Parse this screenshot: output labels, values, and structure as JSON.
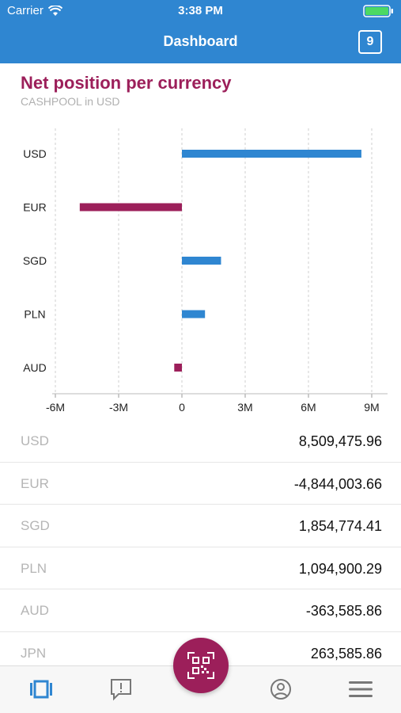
{
  "status": {
    "carrier": "Carrier",
    "time": "3:38 PM"
  },
  "nav": {
    "title": "Dashboard",
    "badge": "9"
  },
  "card": {
    "title": "Net position per currency",
    "subtitle": "CASHPOOL in USD"
  },
  "colors": {
    "positive": "#2f86d1",
    "negative": "#9c1f5a",
    "header": "#2f86d1"
  },
  "chart_data": {
    "type": "bar",
    "orientation": "horizontal",
    "categories": [
      "USD",
      "EUR",
      "SGD",
      "PLN",
      "AUD"
    ],
    "values": [
      8509475.96,
      -4844003.66,
      1854774.41,
      1094900.29,
      -363585.86
    ],
    "xlim": [
      -6000000,
      9000000
    ],
    "xticks": [
      -6000000,
      -3000000,
      0,
      3000000,
      6000000,
      9000000
    ],
    "xtick_labels": [
      "-6M",
      "-3M",
      "0",
      "3M",
      "6M",
      "9M"
    ],
    "grid": true
  },
  "positions": [
    {
      "currency": "USD",
      "value": "8,509,475.96"
    },
    {
      "currency": "EUR",
      "value": "-4,844,003.66"
    },
    {
      "currency": "SGD",
      "value": "1,854,774.41"
    },
    {
      "currency": "PLN",
      "value": "1,094,900.29"
    },
    {
      "currency": "AUD",
      "value": "-363,585.86"
    },
    {
      "currency": "JPN",
      "value": "263,585.86"
    }
  ],
  "tabs": [
    {
      "icon": "dashboard-icon"
    },
    {
      "icon": "alert-message-icon"
    },
    {
      "icon": "profile-icon"
    },
    {
      "icon": "menu-icon"
    }
  ],
  "fab": {
    "icon": "qr-code-icon"
  }
}
